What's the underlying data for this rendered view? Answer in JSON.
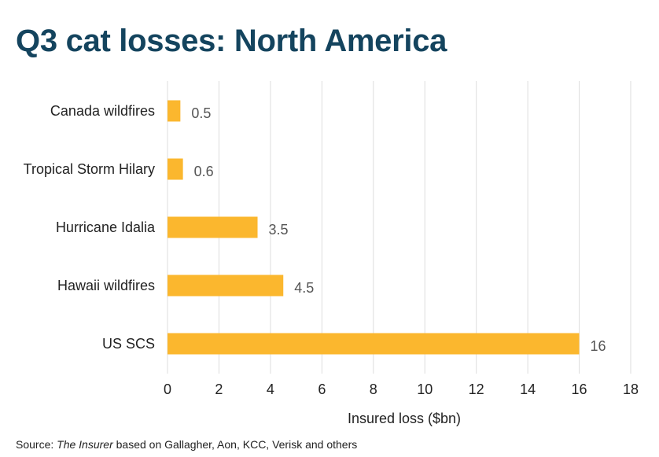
{
  "title": "Q3 cat losses: North America",
  "source": {
    "prefix": "Source: ",
    "publication": "The Insurer",
    "suffix": " based on Gallagher, Aon, KCC, Verisk and others"
  },
  "colors": {
    "bar": "#fbb72e",
    "title": "#14445e",
    "grid": "#dddddd",
    "text": "#222222",
    "value_label": "#555555"
  },
  "chart_data": {
    "type": "bar",
    "orientation": "horizontal",
    "categories": [
      "Canada wildfires",
      "Tropical Storm Hilary",
      "Hurricane Idalia",
      "Hawaii wildfires",
      "US SCS"
    ],
    "values": [
      0.5,
      0.6,
      3.5,
      4.5,
      16
    ],
    "value_labels": [
      "0.5",
      "0.6",
      "3.5",
      "4.5",
      "16"
    ],
    "xlabel": "Insured loss ($bn)",
    "ylabel": "",
    "xlim": [
      0,
      18
    ],
    "xticks": [
      0,
      2,
      4,
      6,
      8,
      10,
      12,
      14,
      16,
      18
    ],
    "grid": "vertical",
    "legend": "none"
  }
}
